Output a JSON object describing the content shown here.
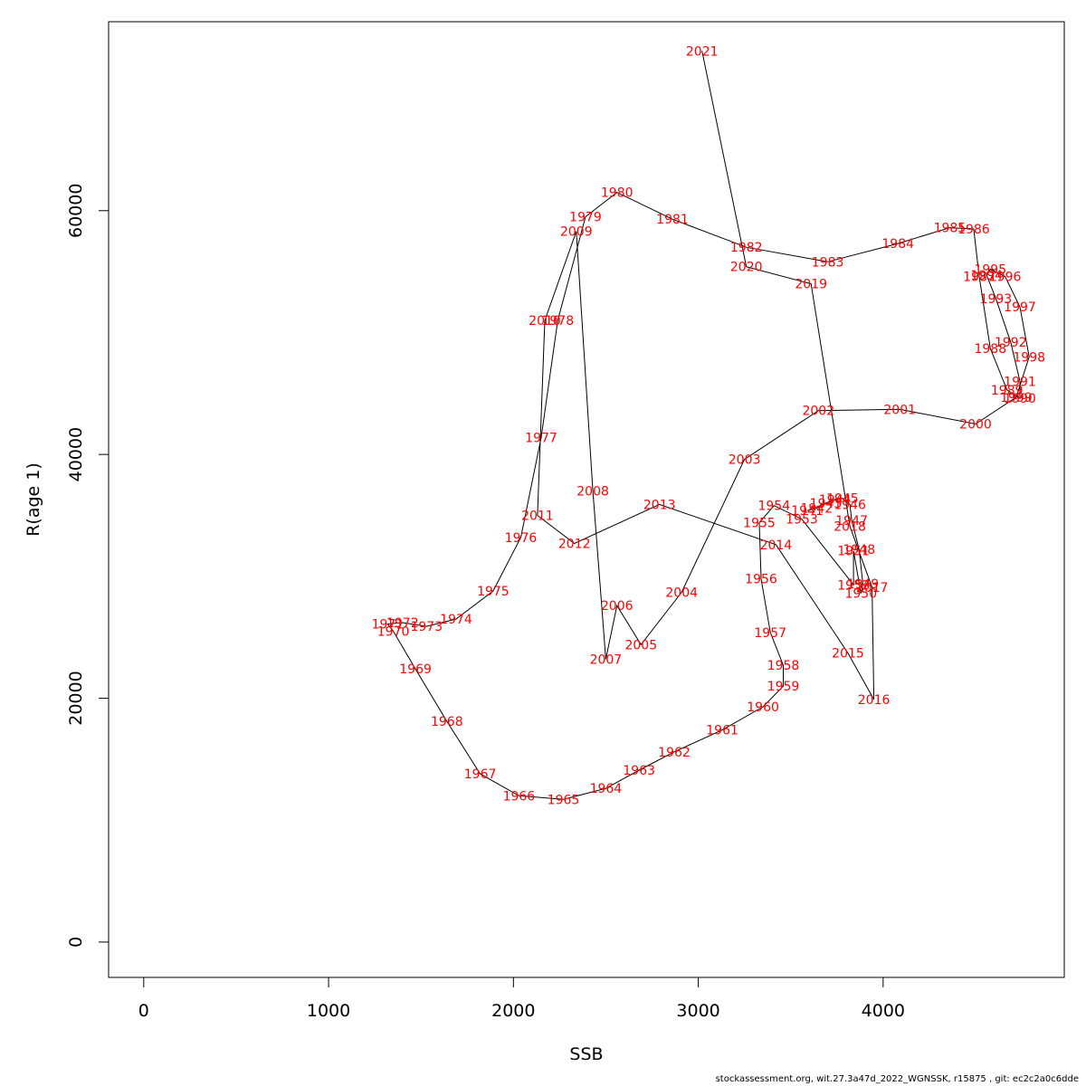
{
  "chart_data": {
    "type": "line",
    "title": "",
    "xlabel": "SSB",
    "ylabel": "R(age 1)",
    "xlim": [
      -190,
      4980
    ],
    "ylim": [
      -2900,
      75500
    ],
    "xticks": [
      0,
      1000,
      2000,
      3000,
      4000
    ],
    "yticks": [
      0,
      20000,
      40000,
      60000
    ],
    "xtick_labels": [
      "0",
      "1000",
      "2000",
      "3000",
      "4000"
    ],
    "ytick_labels": [
      "0",
      "20000",
      "40000",
      "60000"
    ],
    "grid": false,
    "line_color": "#000000",
    "label_color": "#ff0000",
    "points": [
      {
        "year": "1941",
        "x": 3590,
        "y": 35400
      },
      {
        "year": "1942",
        "x": 3640,
        "y": 35600
      },
      {
        "year": "1943",
        "x": 3690,
        "y": 36000
      },
      {
        "year": "1944",
        "x": 3740,
        "y": 36300
      },
      {
        "year": "1945",
        "x": 3780,
        "y": 36400
      },
      {
        "year": "1946",
        "x": 3820,
        "y": 35900
      },
      {
        "year": "1947",
        "x": 3830,
        "y": 34600
      },
      {
        "year": "1948",
        "x": 3870,
        "y": 32200
      },
      {
        "year": "1949",
        "x": 3890,
        "y": 29400
      },
      {
        "year": "1950",
        "x": 3880,
        "y": 28600
      },
      {
        "year": "1951",
        "x": 3840,
        "y": 32100
      },
      {
        "year": "1952",
        "x": 3840,
        "y": 29300
      },
      {
        "year": "1953",
        "x": 3560,
        "y": 34700
      },
      {
        "year": "1954",
        "x": 3410,
        "y": 35800
      },
      {
        "year": "1955",
        "x": 3330,
        "y": 34400
      },
      {
        "year": "1956",
        "x": 3340,
        "y": 29800
      },
      {
        "year": "1957",
        "x": 3390,
        "y": 25400
      },
      {
        "year": "1958",
        "x": 3460,
        "y": 22700
      },
      {
        "year": "1959",
        "x": 3460,
        "y": 21000
      },
      {
        "year": "1960",
        "x": 3350,
        "y": 19300
      },
      {
        "year": "1961",
        "x": 3130,
        "y": 17400
      },
      {
        "year": "1962",
        "x": 2870,
        "y": 15600
      },
      {
        "year": "1963",
        "x": 2680,
        "y": 14100
      },
      {
        "year": "1964",
        "x": 2500,
        "y": 12600
      },
      {
        "year": "1965",
        "x": 2270,
        "y": 11700
      },
      {
        "year": "1966",
        "x": 2030,
        "y": 12000
      },
      {
        "year": "1967",
        "x": 1820,
        "y": 13800
      },
      {
        "year": "1968",
        "x": 1640,
        "y": 18100
      },
      {
        "year": "1969",
        "x": 1470,
        "y": 22400
      },
      {
        "year": "1970",
        "x": 1350,
        "y": 25500
      },
      {
        "year": "1971",
        "x": 1320,
        "y": 26100
      },
      {
        "year": "1972",
        "x": 1400,
        "y": 26200
      },
      {
        "year": "1973",
        "x": 1530,
        "y": 25900
      },
      {
        "year": "1974",
        "x": 1690,
        "y": 26500
      },
      {
        "year": "1975",
        "x": 1890,
        "y": 28800
      },
      {
        "year": "1976",
        "x": 2040,
        "y": 33200
      },
      {
        "year": "1977",
        "x": 2150,
        "y": 41400
      },
      {
        "year": "1978",
        "x": 2240,
        "y": 51000
      },
      {
        "year": "1979",
        "x": 2390,
        "y": 59500
      },
      {
        "year": "1980",
        "x": 2560,
        "y": 61500
      },
      {
        "year": "1981",
        "x": 2860,
        "y": 59300
      },
      {
        "year": "1982",
        "x": 3260,
        "y": 57000
      },
      {
        "year": "1983",
        "x": 3700,
        "y": 55800
      },
      {
        "year": "1984",
        "x": 4080,
        "y": 57300
      },
      {
        "year": "1985",
        "x": 4360,
        "y": 58600
      },
      {
        "year": "1986",
        "x": 4490,
        "y": 58500
      },
      {
        "year": "1987",
        "x": 4520,
        "y": 54600
      },
      {
        "year": "1988",
        "x": 4580,
        "y": 48700
      },
      {
        "year": "1989",
        "x": 4670,
        "y": 45300
      },
      {
        "year": "1990",
        "x": 4740,
        "y": 44600
      },
      {
        "year": "1991",
        "x": 4740,
        "y": 46000
      },
      {
        "year": "1992",
        "x": 4690,
        "y": 49200
      },
      {
        "year": "1993",
        "x": 4610,
        "y": 52800
      },
      {
        "year": "1994",
        "x": 4560,
        "y": 54700
      },
      {
        "year": "1995",
        "x": 4580,
        "y": 55200
      },
      {
        "year": "1996",
        "x": 4660,
        "y": 54600
      },
      {
        "year": "1997",
        "x": 4740,
        "y": 52100
      },
      {
        "year": "1998",
        "x": 4790,
        "y": 48000
      },
      {
        "year": "1999",
        "x": 4720,
        "y": 44700
      },
      {
        "year": "2000",
        "x": 4500,
        "y": 42500
      },
      {
        "year": "2001",
        "x": 4090,
        "y": 43700
      },
      {
        "year": "2002",
        "x": 3650,
        "y": 43600
      },
      {
        "year": "2003",
        "x": 3250,
        "y": 39600
      },
      {
        "year": "2004",
        "x": 2910,
        "y": 28700
      },
      {
        "year": "2005",
        "x": 2690,
        "y": 24400
      },
      {
        "year": "2006",
        "x": 2560,
        "y": 27600
      },
      {
        "year": "2007",
        "x": 2500,
        "y": 23200
      },
      {
        "year": "2008",
        "x": 2430,
        "y": 37000
      },
      {
        "year": "2009",
        "x": 2340,
        "y": 58300
      },
      {
        "year": "2010",
        "x": 2170,
        "y": 51000
      },
      {
        "year": "2011",
        "x": 2130,
        "y": 35000
      },
      {
        "year": "2012",
        "x": 2330,
        "y": 32700
      },
      {
        "year": "2013",
        "x": 2790,
        "y": 35900
      },
      {
        "year": "2014",
        "x": 3420,
        "y": 32600
      },
      {
        "year": "2015",
        "x": 3810,
        "y": 23700
      },
      {
        "year": "2016",
        "x": 3950,
        "y": 19900
      },
      {
        "year": "2017",
        "x": 3940,
        "y": 29100
      },
      {
        "year": "2018",
        "x": 3820,
        "y": 34100
      },
      {
        "year": "2019",
        "x": 3610,
        "y": 54000
      },
      {
        "year": "2020",
        "x": 3260,
        "y": 55400
      },
      {
        "year": "2021",
        "x": 3020,
        "y": 73100
      }
    ]
  },
  "footer_text": "stockassessment.org, wit.27.3a47d_2022_WGNSSK, r15875 , git: ec2c2a0c6dde"
}
